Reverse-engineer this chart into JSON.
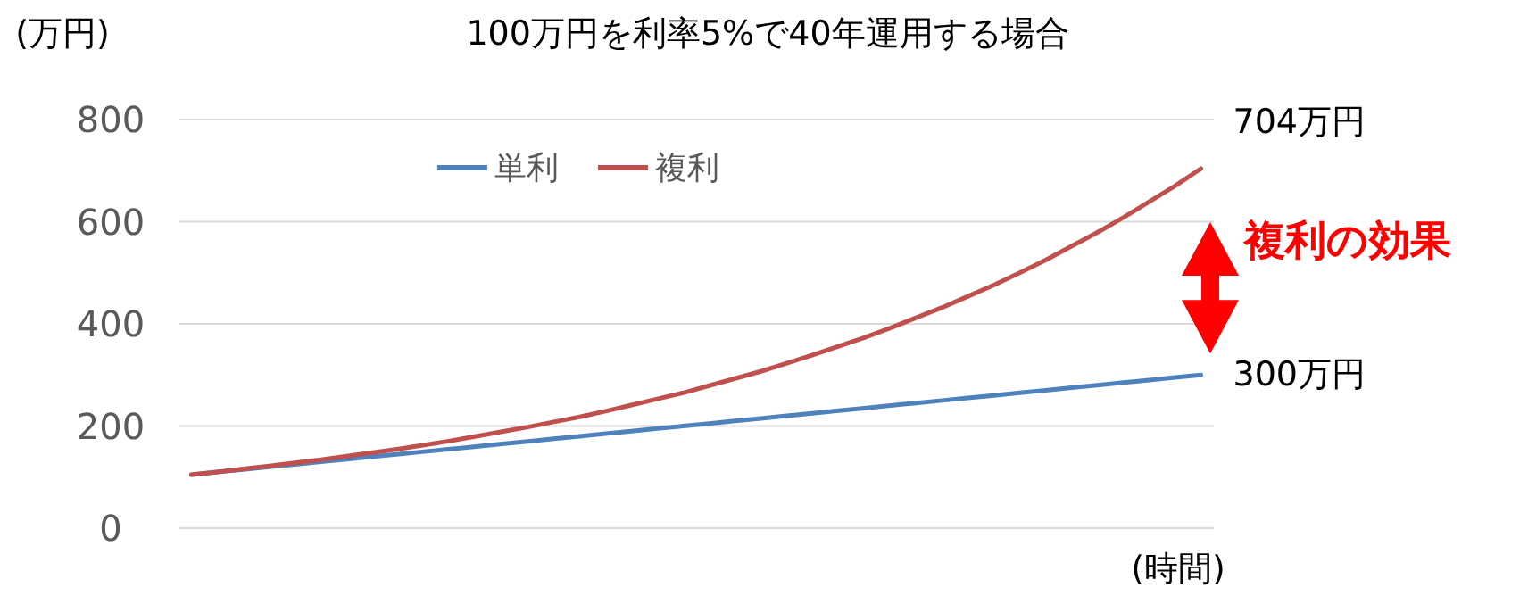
{
  "chart_data": {
    "type": "line",
    "title": "100万円を利率5%で40年運用する場合",
    "ylabel": "(万円)",
    "xlabel": "(時間)",
    "categories": [
      null,
      null,
      null,
      null,
      null,
      null,
      null,
      null,
      null,
      null,
      null,
      null,
      null,
      null,
      null,
      null,
      null,
      null,
      null,
      null,
      null,
      null,
      null,
      null,
      null,
      null,
      null,
      null,
      null,
      null,
      null,
      null,
      null,
      null,
      null,
      null,
      null,
      null,
      null,
      null
    ],
    "series": [
      {
        "name": "単利",
        "color": "#4f81bd",
        "values": [
          105,
          110,
          115,
          120,
          125,
          130,
          135,
          140,
          145,
          150,
          155,
          160,
          165,
          170,
          175,
          180,
          185,
          190,
          195,
          200,
          205,
          210,
          215,
          220,
          225,
          230,
          235,
          240,
          245,
          250,
          255,
          260,
          265,
          270,
          275,
          280,
          285,
          290,
          295,
          300
        ]
      },
      {
        "name": "複利",
        "color": "#c0504d",
        "values": [
          105,
          110,
          116,
          122,
          128,
          134,
          141,
          148,
          155,
          163,
          171,
          180,
          189,
          198,
          208,
          218,
          229,
          241,
          253,
          265,
          279,
          293,
          307,
          323,
          339,
          356,
          373,
          392,
          412,
          432,
          454,
          476,
          500,
          525,
          552,
          579,
          608,
          639,
          670,
          704
        ]
      }
    ],
    "ylim": [
      0,
      800
    ],
    "yticks": [
      0,
      200,
      400,
      600,
      800
    ],
    "grid": "y",
    "legend": "top",
    "annotations": [
      "704万円",
      "300万円",
      "複利の効果"
    ]
  }
}
